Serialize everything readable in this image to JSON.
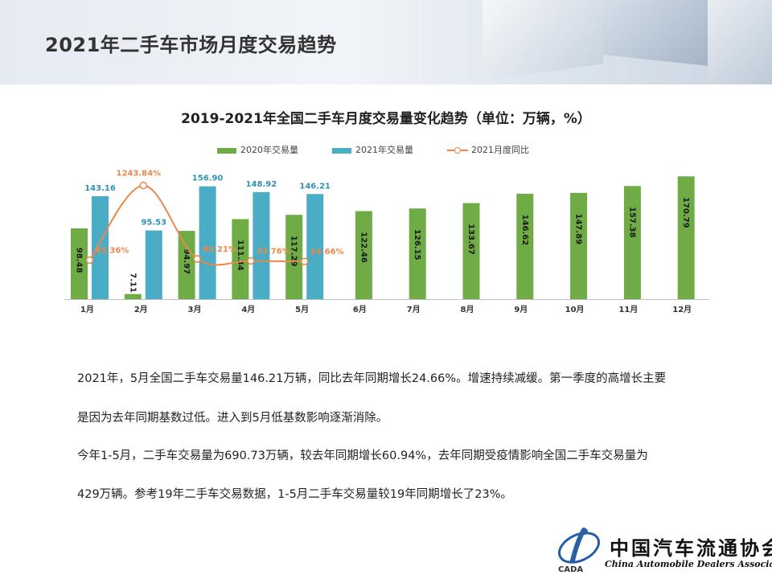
{
  "slide": {
    "title": "2021年二手车市场月度交易趋势"
  },
  "chart_data": {
    "type": "bar",
    "title": "2019-2021年全国二手车月度交易量变化趋势（单位：万辆，%）",
    "categories": [
      "1月",
      "2月",
      "3月",
      "4月",
      "5月",
      "6月",
      "7月",
      "8月",
      "9月",
      "10月",
      "11月",
      "12月"
    ],
    "series": [
      {
        "name": "2020年交易量",
        "kind": "bar",
        "color": "#6fac46",
        "values": [
          98.48,
          7.11,
          94.97,
          111.34,
          117.29,
          122.46,
          126.15,
          133.67,
          146.62,
          147.89,
          157.38,
          170.79
        ],
        "labels": [
          "98.48",
          "7.11",
          "94.97",
          "111.34",
          "117.29",
          "122.46",
          "126.15",
          "133.67",
          "146.62",
          "147.89",
          "157.38",
          "170.79"
        ]
      },
      {
        "name": "2021年交易量",
        "kind": "bar",
        "color": "#4bacc6",
        "values": [
          143.16,
          95.53,
          156.9,
          148.92,
          146.21,
          null,
          null,
          null,
          null,
          null,
          null,
          null
        ],
        "labels": [
          "143.16",
          "95.53",
          "156.90",
          "148.92",
          "146.21"
        ]
      },
      {
        "name": "2021月度同比",
        "kind": "line",
        "color": "#e8884a",
        "values": [
          45.36,
          1243.84,
          65.21,
          33.76,
          24.66,
          null,
          null,
          null,
          null,
          null,
          null,
          null
        ],
        "labels": [
          "45.36%",
          "1243.84%",
          "65.21%",
          "33.76%",
          "24.66%"
        ]
      }
    ],
    "legend_position": "top",
    "grid": false
  },
  "paragraphs": [
    "2021年，5月全国二手车交易量146.21万辆，同比去年同期增长24.66%。增速持续减缓。第一季度的高增长主要",
    "是因为去年同期基数过低。进入到5月低基数影响逐渐消除。",
    "今年1-5月，二手车交易量为690.73万辆，较去年同期增长60.94%，去年同期受疫情影响全国二手车交易量为",
    "429万辆。参考19年二手车交易数据，1-5月二手车交易量较19年同期增长了23%。"
  ],
  "logo": {
    "name_cn": "中国汽车流通协会",
    "name_en": "China Automobile Dealers Association",
    "mark_text": "CADA"
  }
}
